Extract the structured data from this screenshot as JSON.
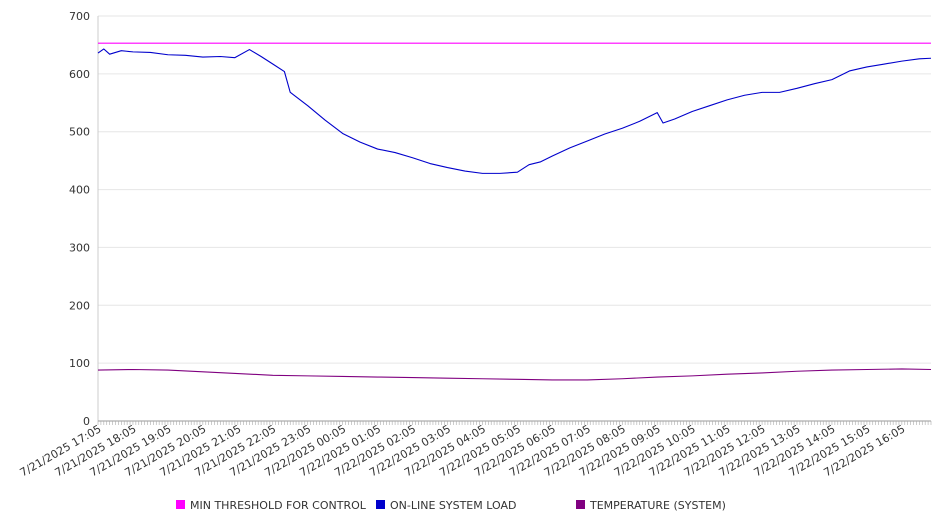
{
  "chart_data": {
    "type": "line",
    "title": "",
    "xlabel": "",
    "ylabel": "",
    "ylim": [
      0,
      700
    ],
    "y_ticks": [
      0,
      100,
      200,
      300,
      400,
      500,
      600,
      700
    ],
    "grid": true,
    "legend_position": "bottom",
    "x_range": [
      "7/21/2025 17:05",
      "7/22/2025 16:55"
    ],
    "x_tick_labels": [
      "7/21/2025 17:05",
      "7/21/2025 18:05",
      "7/21/2025 19:05",
      "7/21/2025 20:05",
      "7/21/2025 21:05",
      "7/21/2025 22:05",
      "7/21/2025 23:05",
      "7/22/2025 00:05",
      "7/22/2025 01:05",
      "7/22/2025 02:05",
      "7/22/2025 03:05",
      "7/22/2025 04:05",
      "7/22/2025 05:05",
      "7/22/2025 06:05",
      "7/22/2025 07:05",
      "7/22/2025 08:05",
      "7/22/2025 09:05",
      "7/22/2025 10:05",
      "7/22/2025 11:05",
      "7/22/2025 12:05",
      "7/22/2025 13:05",
      "7/22/2025 14:05",
      "7/22/2025 15:05",
      "7/22/2025 16:05"
    ],
    "series": [
      {
        "name": "MIN THRESHOLD FOR CONTROL",
        "color": "#ff00ff",
        "points": [
          [
            "7/21/2025 17:05",
            653
          ],
          [
            "7/22/2025 16:55",
            653
          ]
        ]
      },
      {
        "name": "ON-LINE SYSTEM LOAD",
        "color": "#0000cc",
        "points": [
          [
            "7/21/2025 17:05",
            636
          ],
          [
            "7/21/2025 17:15",
            643
          ],
          [
            "7/21/2025 17:25",
            634
          ],
          [
            "7/21/2025 17:45",
            640
          ],
          [
            "7/21/2025 18:05",
            638
          ],
          [
            "7/21/2025 18:35",
            637
          ],
          [
            "7/21/2025 19:05",
            633
          ],
          [
            "7/21/2025 19:35",
            632
          ],
          [
            "7/21/2025 20:05",
            629
          ],
          [
            "7/21/2025 20:35",
            630
          ],
          [
            "7/21/2025 21:00",
            628
          ],
          [
            "7/21/2025 21:25",
            642
          ],
          [
            "7/21/2025 21:45",
            630
          ],
          [
            "7/21/2025 22:05",
            617
          ],
          [
            "7/21/2025 22:25",
            604
          ],
          [
            "7/21/2025 22:35",
            568
          ],
          [
            "7/21/2025 23:05",
            545
          ],
          [
            "7/21/2025 23:35",
            520
          ],
          [
            "7/22/2025 00:05",
            497
          ],
          [
            "7/22/2025 00:35",
            482
          ],
          [
            "7/22/2025 01:05",
            470
          ],
          [
            "7/22/2025 01:35",
            464
          ],
          [
            "7/22/2025 02:05",
            455
          ],
          [
            "7/22/2025 02:35",
            445
          ],
          [
            "7/22/2025 03:05",
            438
          ],
          [
            "7/22/2025 03:35",
            432
          ],
          [
            "7/22/2025 04:05",
            428
          ],
          [
            "7/22/2025 04:35",
            428
          ],
          [
            "7/22/2025 05:05",
            430
          ],
          [
            "7/22/2025 05:25",
            443
          ],
          [
            "7/22/2025 05:45",
            448
          ],
          [
            "7/22/2025 06:05",
            458
          ],
          [
            "7/22/2025 06:35",
            472
          ],
          [
            "7/22/2025 07:05",
            484
          ],
          [
            "7/22/2025 07:35",
            496
          ],
          [
            "7/22/2025 08:05",
            506
          ],
          [
            "7/22/2025 08:35",
            518
          ],
          [
            "7/22/2025 09:05",
            533
          ],
          [
            "7/22/2025 09:15",
            515
          ],
          [
            "7/22/2025 09:35",
            522
          ],
          [
            "7/22/2025 10:05",
            535
          ],
          [
            "7/22/2025 10:35",
            545
          ],
          [
            "7/22/2025 11:05",
            555
          ],
          [
            "7/22/2025 11:35",
            563
          ],
          [
            "7/22/2025 12:05",
            568
          ],
          [
            "7/22/2025 12:35",
            568
          ],
          [
            "7/22/2025 13:05",
            575
          ],
          [
            "7/22/2025 13:35",
            583
          ],
          [
            "7/22/2025 14:05",
            590
          ],
          [
            "7/22/2025 14:35",
            605
          ],
          [
            "7/22/2025 15:05",
            612
          ],
          [
            "7/22/2025 15:35",
            617
          ],
          [
            "7/22/2025 16:05",
            622
          ],
          [
            "7/22/2025 16:35",
            626
          ],
          [
            "7/22/2025 16:55",
            627
          ]
        ]
      },
      {
        "name": "TEMPERATURE (SYSTEM)",
        "color": "#800080",
        "points": [
          [
            "7/21/2025 17:05",
            88
          ],
          [
            "7/21/2025 18:05",
            89
          ],
          [
            "7/21/2025 19:05",
            88
          ],
          [
            "7/21/2025 20:05",
            85
          ],
          [
            "7/21/2025 21:05",
            82
          ],
          [
            "7/21/2025 22:05",
            79
          ],
          [
            "7/21/2025 23:05",
            78
          ],
          [
            "7/22/2025 00:05",
            77
          ],
          [
            "7/22/2025 01:05",
            76
          ],
          [
            "7/22/2025 02:05",
            75
          ],
          [
            "7/22/2025 03:05",
            74
          ],
          [
            "7/22/2025 04:05",
            73
          ],
          [
            "7/22/2025 05:05",
            72
          ],
          [
            "7/22/2025 06:05",
            71
          ],
          [
            "7/22/2025 07:05",
            71
          ],
          [
            "7/22/2025 08:05",
            73
          ],
          [
            "7/22/2025 09:05",
            76
          ],
          [
            "7/22/2025 10:05",
            78
          ],
          [
            "7/22/2025 11:05",
            81
          ],
          [
            "7/22/2025 12:05",
            83
          ],
          [
            "7/22/2025 13:05",
            86
          ],
          [
            "7/22/2025 14:05",
            88
          ],
          [
            "7/22/2025 15:05",
            89
          ],
          [
            "7/22/2025 16:05",
            90
          ],
          [
            "7/22/2025 16:55",
            89
          ]
        ]
      }
    ]
  }
}
